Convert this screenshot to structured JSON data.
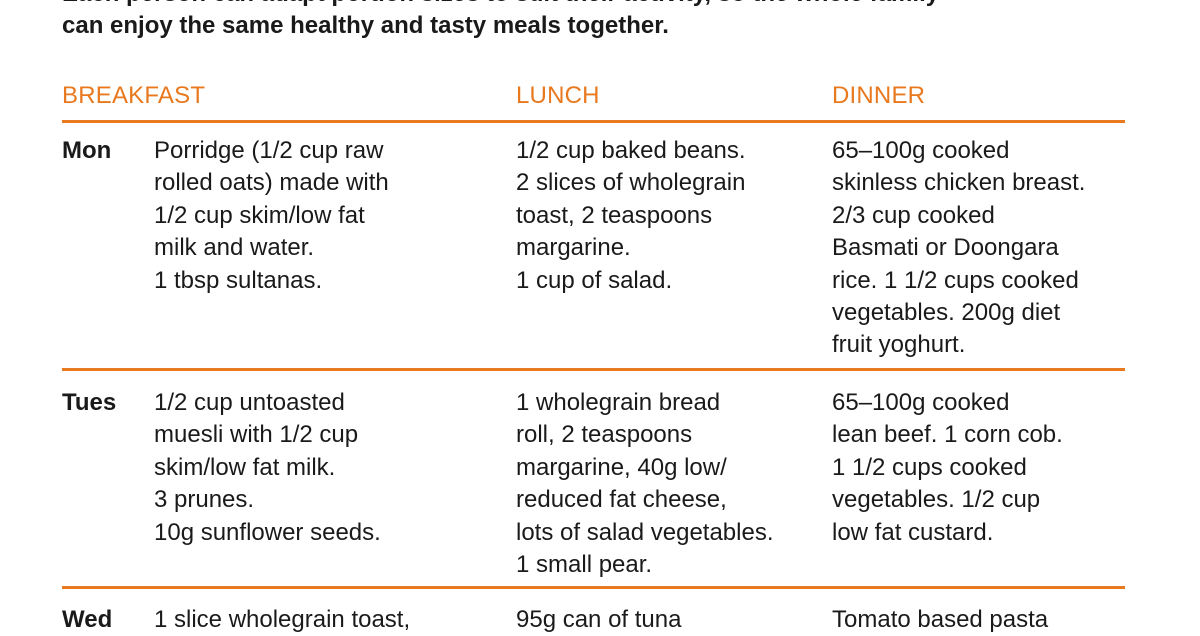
{
  "intro": {
    "line1": "Each person can adapt portion sizes to suit their activity, so the whole family",
    "line2": "can enjoy the same healthy and tasty meals together."
  },
  "headers": {
    "breakfast": "BREAKFAST",
    "lunch": "LUNCH",
    "dinner": "DINNER"
  },
  "colors": {
    "accent": "#e8791f",
    "text": "#1a1a1a"
  },
  "rows": [
    {
      "day": "Mon",
      "breakfast": "Porridge (1/2 cup raw\nrolled oats) made with\n1/2 cup skim/low fat\nmilk and water.\n1 tbsp sultanas.",
      "lunch": "1/2 cup baked beans.\n2 slices of wholegrain\ntoast, 2 teaspoons\nmargarine.\n1 cup of salad.",
      "dinner": "65–100g cooked\nskinless chicken breast.\n2/3 cup cooked\nBasmati or Doongara\nrice. 1 1/2 cups cooked\nvegetables. 200g diet\nfruit yoghurt."
    },
    {
      "day": "Tues",
      "breakfast": "1/2 cup untoasted\nmuesli with 1/2 cup\nskim/low fat milk.\n3 prunes.\n10g sunflower seeds.",
      "lunch": "1 wholegrain bread\nroll, 2 teaspoons\nmargarine, 40g low/\nreduced fat cheese,\nlots of salad vegetables.\n1 small pear.",
      "dinner": "65–100g cooked\nlean beef. 1 corn cob.\n1 1/2 cups cooked\nvegetables. 1/2 cup\nlow fat custard."
    },
    {
      "day": "Wed",
      "breakfast": "1 slice wholegrain toast,",
      "lunch": "95g can of tuna",
      "dinner": "Tomato based pasta"
    }
  ]
}
